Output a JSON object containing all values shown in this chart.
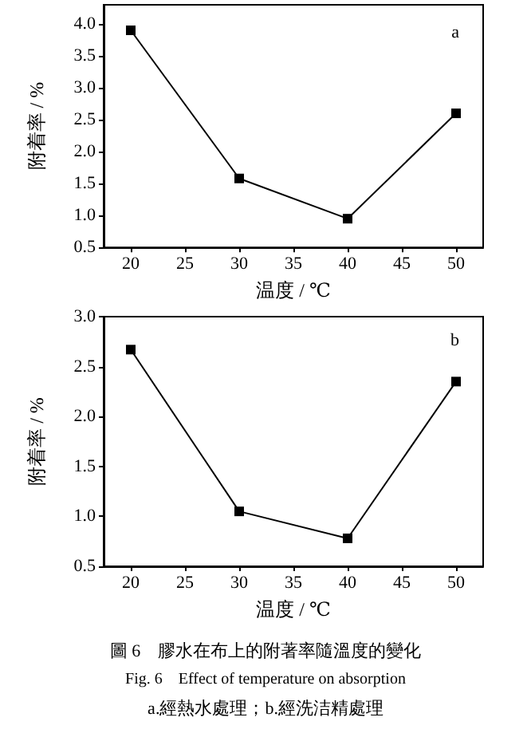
{
  "chart_data": [
    {
      "type": "line",
      "title": "a",
      "xlabel": "温度 / ℃",
      "ylabel": "附着率 / %",
      "x": [
        20,
        30,
        40,
        50
      ],
      "values": [
        3.9,
        1.58,
        0.95,
        2.6
      ],
      "color": "#000000",
      "marker": "square",
      "xlim": [
        17.5,
        52.5
      ],
      "xticks": [
        20,
        25,
        30,
        35,
        40,
        45,
        50
      ],
      "ylim": [
        0.5,
        4.3
      ],
      "yticks": [
        0.5,
        {
          "value": 1,
          "label": "1.0"
        },
        1.5,
        {
          "value": 2,
          "label": "2.0"
        },
        2.5,
        {
          "value": 3,
          "label": "3.0"
        },
        3.5,
        {
          "value": 4,
          "label": "4.0"
        }
      ]
    },
    {
      "type": "line",
      "title": "b",
      "xlabel": "温度 / ℃",
      "ylabel": "附着率 / %",
      "x": [
        20,
        30,
        40,
        50
      ],
      "values": [
        2.67,
        1.05,
        0.78,
        2.35
      ],
      "color": "#000000",
      "marker": "square",
      "xlim": [
        17.5,
        52.5
      ],
      "xticks": [
        20,
        25,
        30,
        35,
        40,
        45,
        50
      ],
      "ylim": [
        0.5,
        3.0
      ],
      "yticks": [
        0.5,
        {
          "value": 1,
          "label": "1.0"
        },
        1.5,
        {
          "value": 2,
          "label": "2.0"
        },
        2.5,
        {
          "value": 3,
          "label": "3.0"
        }
      ],
      "annotations": [
        "圖 6　膠水在布上的附著率隨溫度的變化",
        "Fig. 6　Effect of temperature on absorption",
        "a.經熱水處理；b.經洗洁精處理"
      ]
    }
  ]
}
